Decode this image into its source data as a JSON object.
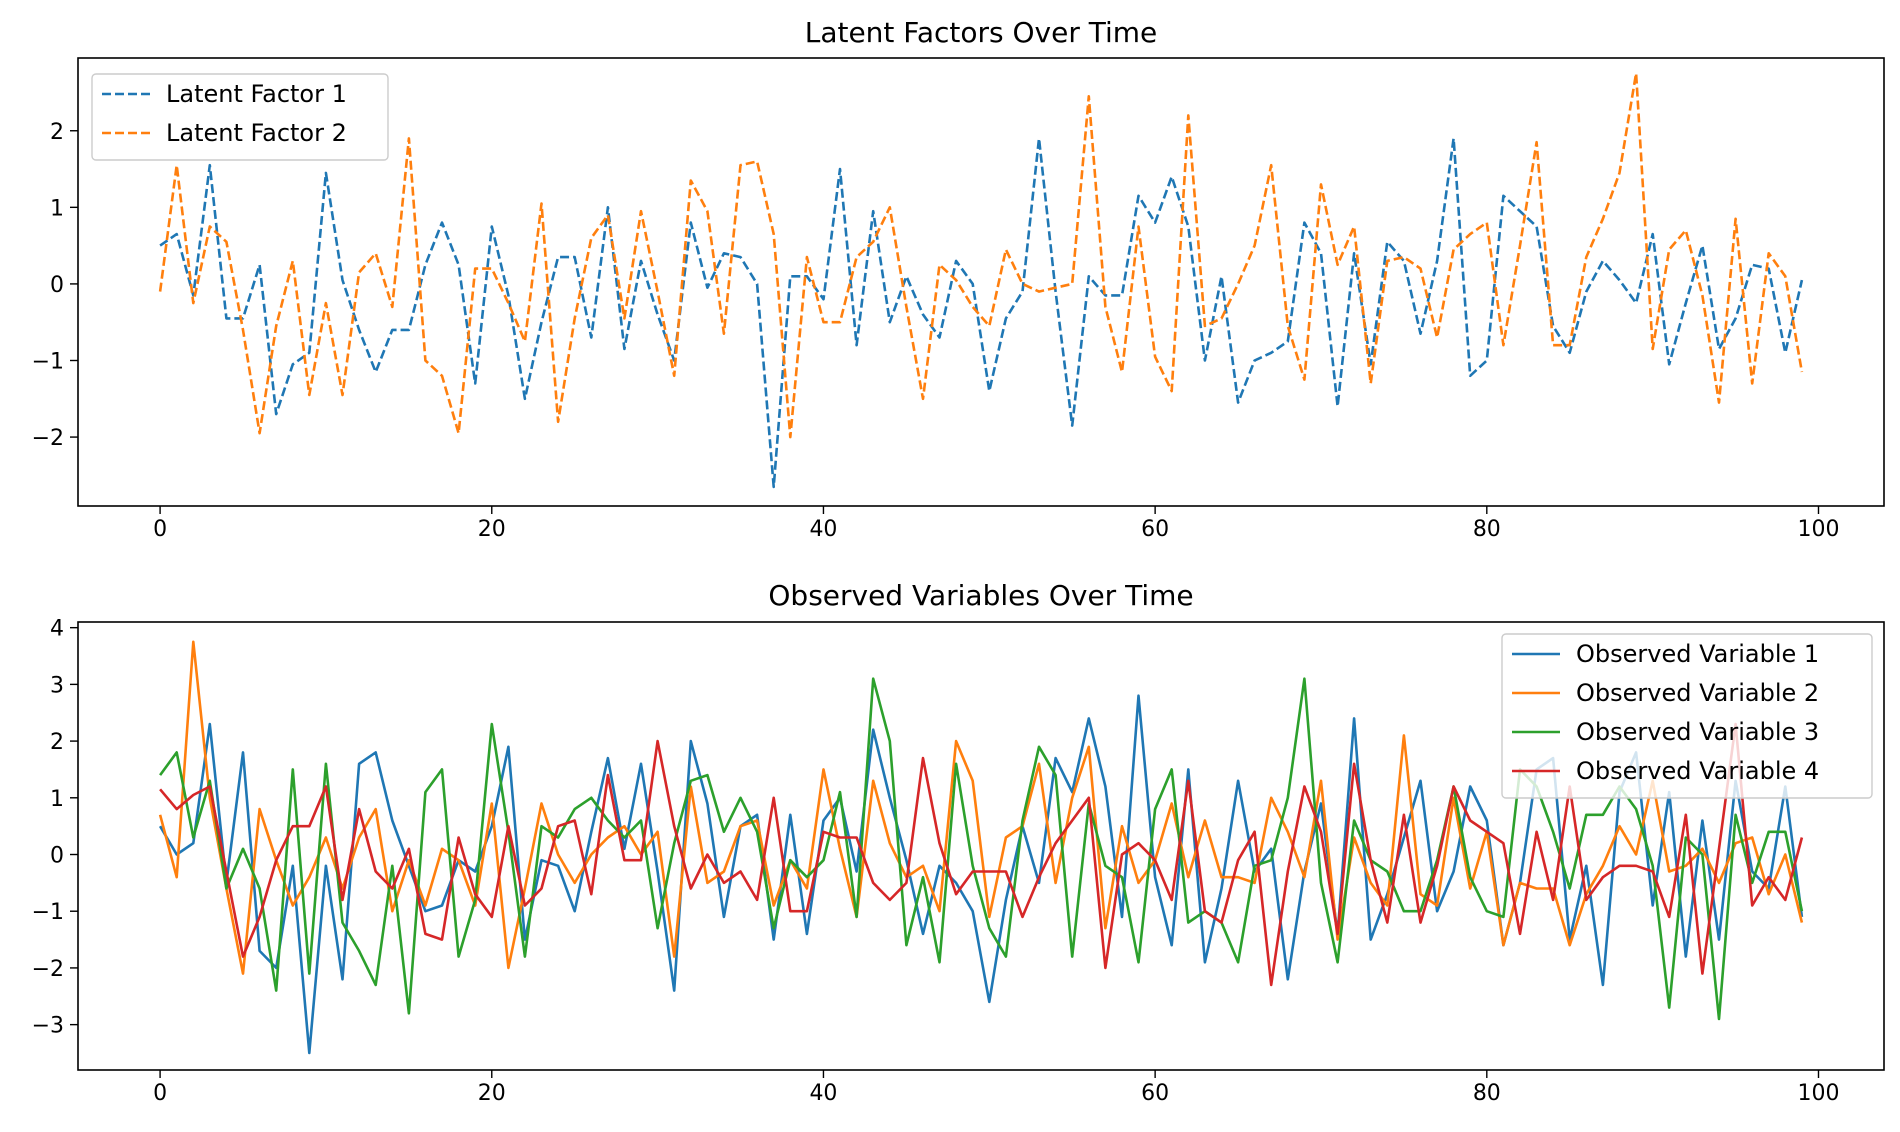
{
  "chart_data": [
    {
      "type": "line",
      "title": "Latent Factors Over Time",
      "xlabel": "",
      "ylabel": "",
      "xlim": [
        -4.95,
        103.95
      ],
      "ylim": [
        -2.9,
        2.95
      ],
      "xticks": [
        0,
        20,
        40,
        60,
        80,
        100
      ],
      "xtick_labels": [
        "0",
        "20",
        "40",
        "60",
        "80",
        "100"
      ],
      "yticks": [
        -2,
        -1,
        0,
        1,
        2
      ],
      "ytick_labels": [
        "−2",
        "−1",
        "0",
        "1",
        "2"
      ],
      "grid": false,
      "legend_position": "upper-left",
      "x": [
        0,
        1,
        2,
        3,
        4,
        5,
        6,
        7,
        8,
        9,
        10,
        11,
        12,
        13,
        14,
        15,
        16,
        17,
        18,
        19,
        20,
        21,
        22,
        23,
        24,
        25,
        26,
        27,
        28,
        29,
        30,
        31,
        32,
        33,
        34,
        35,
        36,
        37,
        38,
        39,
        40,
        41,
        42,
        43,
        44,
        45,
        46,
        47,
        48,
        49,
        50,
        51,
        52,
        53,
        54,
        55,
        56,
        57,
        58,
        59,
        60,
        61,
        62,
        63,
        64,
        65,
        66,
        67,
        68,
        69,
        70,
        71,
        72,
        73,
        74,
        75,
        76,
        77,
        78,
        79,
        80,
        81,
        82,
        83,
        84,
        85,
        86,
        87,
        88,
        89,
        90,
        91,
        92,
        93,
        94,
        95,
        96,
        97,
        98,
        99
      ],
      "series": [
        {
          "name": "Latent Factor 1",
          "color": "#1f77b4",
          "dash": "dashed",
          "values": [
            0.5,
            0.65,
            -0.15,
            1.55,
            -0.45,
            -0.45,
            0.25,
            -1.7,
            -1.05,
            -0.9,
            1.45,
            0.05,
            -0.6,
            -1.15,
            -0.6,
            -0.6,
            0.25,
            0.8,
            0.25,
            -1.3,
            0.75,
            -0.15,
            -1.5,
            -0.5,
            0.35,
            0.35,
            -0.7,
            1.0,
            -0.85,
            0.3,
            -0.4,
            -1.0,
            0.8,
            -0.05,
            0.4,
            0.35,
            0.0,
            -2.65,
            0.1,
            0.1,
            -0.2,
            1.5,
            -0.8,
            0.95,
            -0.5,
            0.1,
            -0.4,
            -0.7,
            0.3,
            0.0,
            -1.4,
            -0.45,
            -0.1,
            1.9,
            -0.1,
            -1.85,
            0.1,
            -0.15,
            -0.15,
            1.15,
            0.8,
            1.4,
            0.75,
            -1.0,
            0.1,
            -1.55,
            -1.0,
            -0.9,
            -0.75,
            0.8,
            0.4,
            -1.6,
            0.4,
            -1.05,
            0.55,
            0.3,
            -0.65,
            0.3,
            1.9,
            -1.2,
            -1.0,
            1.15,
            0.95,
            0.75,
            -0.55,
            -0.9,
            -0.1,
            0.3,
            0.05,
            -0.25,
            0.65,
            -1.05,
            -0.25,
            0.5,
            -0.85,
            -0.45,
            0.25,
            0.2,
            -0.9,
            0.05
          ]
        },
        {
          "name": "Latent Factor 2",
          "color": "#ff7f0e",
          "dash": "dashed",
          "values": [
            -0.1,
            1.55,
            -0.25,
            0.75,
            0.55,
            -0.6,
            -1.95,
            -0.55,
            0.3,
            -1.45,
            -0.25,
            -1.45,
            0.15,
            0.4,
            -0.3,
            1.9,
            -1.0,
            -1.2,
            -1.95,
            0.2,
            0.2,
            -0.25,
            -0.75,
            1.05,
            -1.8,
            -0.45,
            0.6,
            0.9,
            -0.45,
            0.95,
            -0.1,
            -1.2,
            1.35,
            0.95,
            -0.65,
            1.55,
            1.6,
            0.65,
            -2.0,
            0.35,
            -0.5,
            -0.5,
            0.35,
            0.55,
            1.0,
            -0.3,
            -1.5,
            0.25,
            0.05,
            -0.3,
            -0.55,
            0.45,
            0.0,
            -0.1,
            -0.05,
            0.0,
            2.45,
            -0.3,
            -1.15,
            0.75,
            -0.95,
            -1.4,
            2.2,
            -0.55,
            -0.45,
            0.0,
            0.5,
            1.55,
            -0.55,
            -1.25,
            1.3,
            0.25,
            0.75,
            -1.3,
            0.3,
            0.35,
            0.2,
            -0.7,
            0.45,
            0.65,
            0.8,
            -0.8,
            0.5,
            1.85,
            -0.8,
            -0.8,
            0.35,
            0.85,
            1.45,
            2.75,
            -0.85,
            0.45,
            0.7,
            -0.15,
            -1.55,
            0.85,
            -1.3,
            0.4,
            0.1,
            -1.15
          ]
        }
      ]
    },
    {
      "type": "line",
      "title": "Observed Variables Over Time",
      "xlabel": "",
      "ylabel": "",
      "xlim": [
        -4.95,
        103.95
      ],
      "ylim": [
        -3.8,
        4.1
      ],
      "xticks": [
        0,
        20,
        40,
        60,
        80,
        100
      ],
      "xtick_labels": [
        "0",
        "20",
        "40",
        "60",
        "80",
        "100"
      ],
      "yticks": [
        -3,
        -2,
        -1,
        0,
        1,
        2,
        3,
        4
      ],
      "ytick_labels": [
        "−3",
        "−2",
        "−1",
        "0",
        "1",
        "2",
        "3",
        "4"
      ],
      "grid": false,
      "legend_position": "upper-right",
      "x": [
        0,
        1,
        2,
        3,
        4,
        5,
        6,
        7,
        8,
        9,
        10,
        11,
        12,
        13,
        14,
        15,
        16,
        17,
        18,
        19,
        20,
        21,
        22,
        23,
        24,
        25,
        26,
        27,
        28,
        29,
        30,
        31,
        32,
        33,
        34,
        35,
        36,
        37,
        38,
        39,
        40,
        41,
        42,
        43,
        44,
        45,
        46,
        47,
        48,
        49,
        50,
        51,
        52,
        53,
        54,
        55,
        56,
        57,
        58,
        59,
        60,
        61,
        62,
        63,
        64,
        65,
        66,
        67,
        68,
        69,
        70,
        71,
        72,
        73,
        74,
        75,
        76,
        77,
        78,
        79,
        80,
        81,
        82,
        83,
        84,
        85,
        86,
        87,
        88,
        89,
        90,
        91,
        92,
        93,
        94,
        95,
        96,
        97,
        98,
        99
      ],
      "series": [
        {
          "name": "Observed Variable 1",
          "color": "#1f77b4",
          "values": [
            0.5,
            0.0,
            0.2,
            2.3,
            -0.5,
            1.8,
            -1.7,
            -2.0,
            -0.2,
            -3.5,
            -0.2,
            -2.2,
            1.6,
            1.8,
            0.6,
            -0.2,
            -1.0,
            -0.9,
            -0.1,
            -0.3,
            0.5,
            1.9,
            -1.5,
            -0.1,
            -0.2,
            -1.0,
            0.4,
            1.7,
            0.1,
            1.6,
            -0.3,
            -2.4,
            2.0,
            0.9,
            -1.1,
            0.5,
            0.7,
            -1.5,
            0.7,
            -1.4,
            0.6,
            1.0,
            -0.3,
            2.2,
            1.0,
            -0.1,
            -1.4,
            -0.2,
            -0.5,
            -1.0,
            -2.6,
            -0.8,
            0.5,
            -0.5,
            1.7,
            1.1,
            2.4,
            1.2,
            -1.1,
            2.8,
            -0.4,
            -1.6,
            1.5,
            -1.9,
            -0.6,
            1.3,
            -0.3,
            0.1,
            -2.2,
            -0.3,
            0.9,
            -1.4,
            2.4,
            -1.5,
            -0.7,
            0.3,
            1.3,
            -1.0,
            -0.3,
            1.2,
            0.6,
            -1.6,
            -0.5,
            1.5,
            1.7,
            -1.5,
            -0.2,
            -2.3,
            1.1,
            1.8,
            -0.9,
            1.1,
            -1.8,
            0.6,
            -1.5,
            1.3,
            -0.3,
            -0.6,
            1.2,
            -1.1
          ]
        },
        {
          "name": "Observed Variable 2",
          "color": "#ff7f0e",
          "values": [
            0.7,
            -0.4,
            3.75,
            1.0,
            -0.6,
            -2.1,
            0.8,
            -0.1,
            -0.9,
            -0.4,
            0.3,
            -0.6,
            0.3,
            0.8,
            -1.0,
            -0.1,
            -0.9,
            0.1,
            -0.1,
            -0.9,
            0.9,
            -2.0,
            -0.6,
            0.9,
            0.0,
            -0.5,
            0.0,
            0.3,
            0.5,
            0.0,
            0.4,
            -1.8,
            1.2,
            -0.5,
            -0.3,
            0.5,
            0.6,
            -0.9,
            -0.1,
            -0.6,
            1.5,
            0.1,
            -1.1,
            1.3,
            0.2,
            -0.4,
            -0.2,
            -1.0,
            2.0,
            1.3,
            -1.1,
            0.3,
            0.5,
            1.6,
            -0.5,
            1.0,
            1.9,
            -1.3,
            0.5,
            -0.5,
            -0.1,
            0.9,
            -0.4,
            0.6,
            -0.4,
            -0.4,
            -0.5,
            1.0,
            0.4,
            -0.4,
            1.3,
            -1.5,
            0.3,
            -0.5,
            -0.9,
            2.1,
            -0.7,
            -0.9,
            1.0,
            -0.6,
            0.4,
            -1.6,
            -0.5,
            -0.6,
            -0.6,
            -1.6,
            -0.7,
            -0.2,
            0.5,
            0.0,
            1.3,
            -0.3,
            -0.2,
            0.1,
            -0.5,
            0.2,
            0.3,
            -0.7,
            0.0,
            -1.2
          ]
        },
        {
          "name": "Observed Variable 3",
          "color": "#2ca02c",
          "values": [
            1.4,
            1.8,
            0.3,
            1.3,
            -0.6,
            0.1,
            -0.6,
            -2.4,
            1.5,
            -2.1,
            1.6,
            -1.2,
            -1.7,
            -2.3,
            -0.2,
            -2.8,
            1.1,
            1.5,
            -1.8,
            -0.8,
            2.3,
            0.4,
            -1.8,
            0.5,
            0.3,
            0.8,
            1.0,
            0.6,
            0.3,
            0.6,
            -1.3,
            0.2,
            1.3,
            1.4,
            0.4,
            1.0,
            0.4,
            -1.3,
            -0.1,
            -0.4,
            -0.1,
            1.1,
            -1.1,
            3.1,
            2.0,
            -1.6,
            -0.4,
            -1.9,
            1.6,
            -0.2,
            -1.3,
            -1.8,
            0.6,
            1.9,
            1.4,
            -1.8,
            0.9,
            -0.2,
            -0.4,
            -1.9,
            0.8,
            1.5,
            -1.2,
            -1.0,
            -1.2,
            -1.9,
            -0.2,
            -0.1,
            1.0,
            3.1,
            -0.5,
            -1.9,
            0.6,
            -0.1,
            -0.3,
            -1.0,
            -1.0,
            -0.1,
            1.2,
            -0.4,
            -1.0,
            -1.1,
            1.5,
            1.2,
            0.4,
            -0.6,
            0.7,
            0.7,
            1.2,
            0.8,
            -0.2,
            -2.7,
            0.3,
            0.0,
            -2.9,
            0.7,
            -0.5,
            0.4,
            0.4,
            -1.0
          ]
        },
        {
          "name": "Observed Variable 4",
          "color": "#d62728",
          "values": [
            1.15,
            0.8,
            1.05,
            1.2,
            -0.3,
            -1.8,
            -1.1,
            -0.1,
            0.5,
            0.5,
            1.2,
            -0.8,
            0.8,
            -0.3,
            -0.6,
            0.1,
            -1.4,
            -1.5,
            0.3,
            -0.7,
            -1.1,
            0.5,
            -0.9,
            -0.6,
            0.5,
            0.6,
            -0.7,
            1.4,
            -0.1,
            -0.1,
            2.0,
            0.5,
            -0.6,
            0.0,
            -0.5,
            -0.3,
            -0.8,
            1.0,
            -1.0,
            -1.0,
            0.4,
            0.3,
            0.3,
            -0.5,
            -0.8,
            -0.5,
            1.7,
            0.2,
            -0.7,
            -0.3,
            -0.3,
            -0.3,
            -1.1,
            -0.4,
            0.2,
            0.6,
            1.0,
            -2.0,
            0.0,
            0.2,
            -0.1,
            -0.8,
            1.3,
            -1.0,
            -1.2,
            -0.1,
            0.4,
            -2.3,
            -0.3,
            1.2,
            0.4,
            -1.4,
            1.6,
            -0.1,
            -1.2,
            0.7,
            -1.2,
            -0.2,
            1.2,
            0.6,
            0.4,
            0.2,
            -1.4,
            0.4,
            -0.8,
            1.2,
            -0.8,
            -0.4,
            -0.2,
            -0.2,
            -0.3,
            -1.1,
            0.7,
            -2.1,
            0.1,
            2.3,
            -0.9,
            -0.4,
            -0.8,
            0.3
          ]
        }
      ]
    }
  ]
}
